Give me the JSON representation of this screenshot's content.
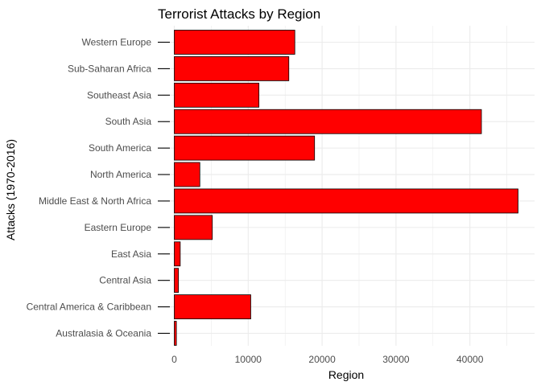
{
  "chart_data": {
    "type": "bar",
    "orientation": "horizontal",
    "title": "Terrorist Attacks by Region",
    "xlabel": "Region",
    "ylabel": "Attacks (1970-2016)",
    "categories": [
      "Australasia & Oceania",
      "Central America & Caribbean",
      "Central Asia",
      "East Asia",
      "Eastern Europe",
      "Middle East & North Africa",
      "North America",
      "South America",
      "South Asia",
      "Southeast Asia",
      "Sub-Saharan Africa",
      "Western Europe"
    ],
    "values": [
      282,
      10344,
      563,
      802,
      5144,
      46511,
      3456,
      18978,
      41559,
      11453,
      15497,
      16307
    ],
    "xlim": [
      0,
      47700
    ],
    "xticks": [
      0,
      10000,
      20000,
      30000,
      40000
    ],
    "xtick_labels": [
      "0",
      "10000",
      "20000",
      "30000",
      "40000"
    ],
    "grid": true,
    "legend": "none",
    "colors": {
      "bar_fill": "#FF0000",
      "bar_stroke": "#000000",
      "grid": "#EBEBEB",
      "tick_text": "#4D4D4D",
      "title_text": "#000000"
    }
  }
}
